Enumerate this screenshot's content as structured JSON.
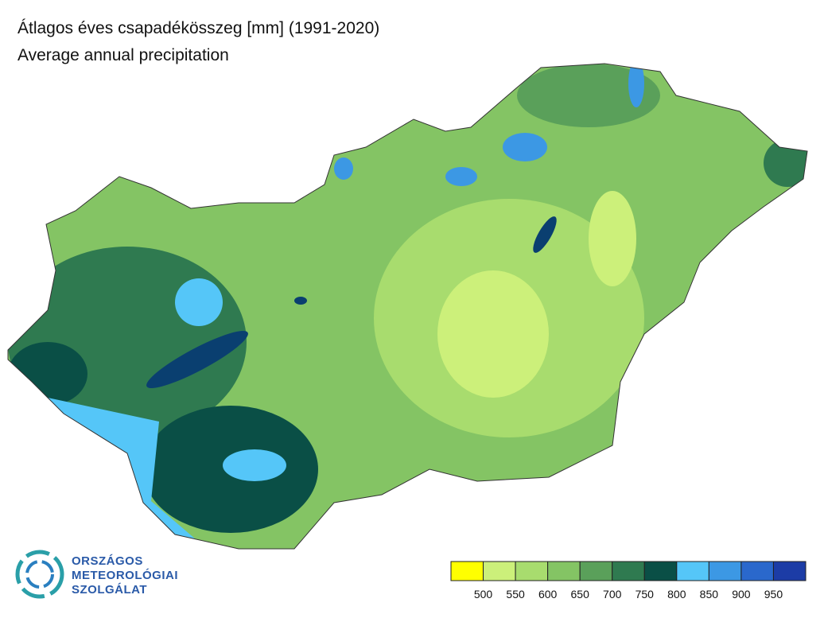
{
  "header": {
    "title": "Átlagos éves csapadékösszeg [mm] (1991-2020)",
    "subtitle": "Average annual precipitation"
  },
  "legend": {
    "colors": [
      "#ffff00",
      "#ccf07a",
      "#a8dc6e",
      "#84c464",
      "#5aa05a",
      "#2f7a50",
      "#0a4f46",
      "#55c6f8",
      "#3c98e4",
      "#2a68cc",
      "#1c3ca6",
      "#0a1c7c"
    ],
    "labels": [
      500,
      550,
      600,
      650,
      700,
      750,
      800,
      850,
      900,
      950
    ]
  },
  "logo": {
    "lines": [
      "ORSZÁGOS",
      "METEOROLÓGIAI",
      "SZOLGÁLAT"
    ]
  }
}
